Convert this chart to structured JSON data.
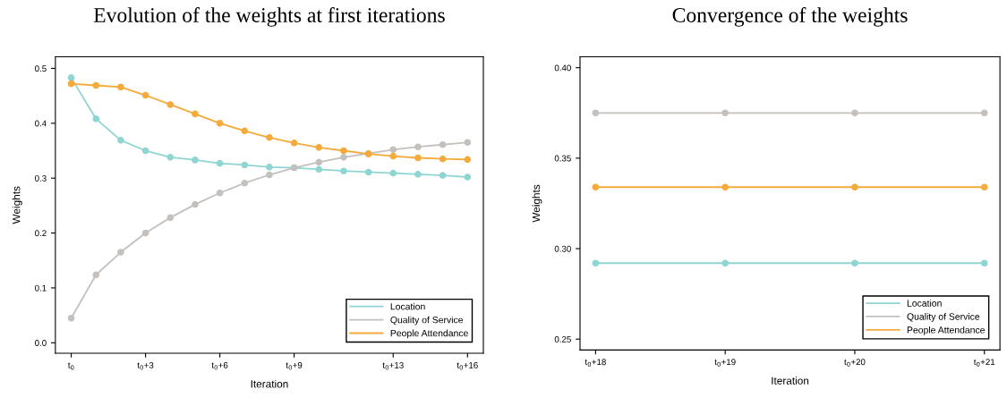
{
  "chart_data": [
    {
      "type": "line",
      "title": "Evolution of the weights at first iterations",
      "xlabel": "Iteration",
      "ylabel": "Weights",
      "categories": [
        "t$_{0}$",
        null,
        null,
        "t$_{0}$+3",
        null,
        null,
        "t$_{0}$+6",
        null,
        null,
        "t$_{0}$+9",
        null,
        null,
        null,
        "t$_{0}$+13",
        null,
        null,
        "t$_{0}$+16"
      ],
      "series": [
        {
          "name": "Location",
          "color": "#8fd5d1",
          "values": [
            0.483,
            0.408,
            0.369,
            0.35,
            0.338,
            0.333,
            0.327,
            0.324,
            0.32,
            0.319,
            0.316,
            0.313,
            0.311,
            0.309,
            0.307,
            0.305,
            0.302
          ]
        },
        {
          "name": "Quality of Service",
          "color": "#c4c0bd",
          "values": [
            0.045,
            0.124,
            0.165,
            0.2,
            0.228,
            0.252,
            0.273,
            0.291,
            0.306,
            0.319,
            0.329,
            0.338,
            0.345,
            0.352,
            0.357,
            0.361,
            0.365
          ]
        },
        {
          "name": "People Attendance",
          "color": "#f5aa3c",
          "values": [
            0.472,
            0.469,
            0.466,
            0.451,
            0.434,
            0.417,
            0.4,
            0.386,
            0.374,
            0.364,
            0.356,
            0.35,
            0.344,
            0.34,
            0.337,
            0.335,
            0.334
          ]
        }
      ],
      "ylim": [
        -0.019,
        0.521
      ],
      "yticks": [
        {
          "value": 0,
          "label": "0.0"
        },
        {
          "value": 0.1,
          "label": "0.1"
        },
        {
          "value": 0.2,
          "label": "0.2"
        },
        {
          "value": 0.3,
          "label": "0.3"
        },
        {
          "value": 0.4,
          "label": "0.4"
        },
        {
          "value": 0.5,
          "label": "0.5"
        }
      ],
      "marker": "circle",
      "line_style": "solid",
      "legend": "bottom right",
      "grid": false
    },
    {
      "type": "line",
      "title": "Convergence of the weights",
      "xlabel": "Iteration",
      "ylabel": "Weights",
      "categories": [
        "t$_{0}$+18",
        "t$_{0}$+19",
        "t$_{0}$+20",
        "t$_{0}$+21"
      ],
      "series": [
        {
          "name": "Location",
          "color": "#8fd5d1",
          "values": [
            0.292,
            0.292,
            0.292,
            0.292
          ]
        },
        {
          "name": "Quality of Service",
          "color": "#c4c0bd",
          "values": [
            0.375,
            0.375,
            0.375,
            0.375
          ]
        },
        {
          "name": "People Attendance",
          "color": "#f5aa3c",
          "values": [
            0.334,
            0.334,
            0.334,
            0.334
          ]
        }
      ],
      "ylim": [
        0.244,
        0.406
      ],
      "yticks": [
        {
          "value": 0.25,
          "label": "0.25"
        },
        {
          "value": 0.3,
          "label": "0.30"
        },
        {
          "value": 0.35,
          "label": "0.35"
        },
        {
          "value": 0.4,
          "label": "0.40"
        }
      ],
      "marker": "circle",
      "line_style": "solid",
      "legend": "bottom right",
      "grid": false
    }
  ]
}
